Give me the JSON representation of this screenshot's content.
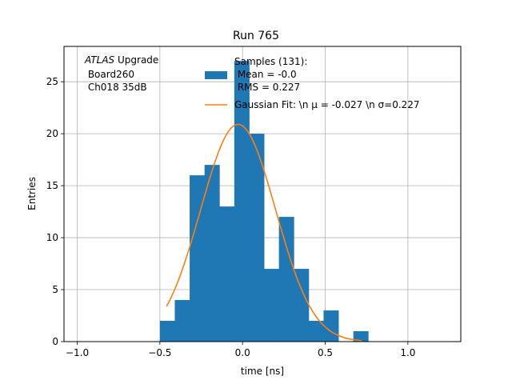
{
  "chart_data": {
    "type": "bar",
    "title": "Run 765",
    "xlabel": "time [ns]",
    "ylabel": "Entries",
    "xlim": [
      -1.08,
      1.32
    ],
    "ylim": [
      0,
      28.4
    ],
    "grid": true,
    "xticks": [
      -1.0,
      -0.5,
      0.0,
      0.5,
      1.0
    ],
    "xtick_labels": [
      "−1.0",
      "−0.5",
      "0.0",
      "0.5",
      "1.0"
    ],
    "yticks": [
      0,
      5,
      10,
      15,
      20,
      25
    ],
    "ytick_labels": [
      "0",
      "5",
      "10",
      "15",
      "20",
      "25"
    ],
    "bin_edges": [
      -0.5,
      -0.41,
      -0.32,
      -0.23,
      -0.14,
      -0.05,
      0.04,
      0.13,
      0.22,
      0.31,
      0.4,
      0.49,
      0.58,
      0.67,
      0.76
    ],
    "counts": [
      2,
      4,
      16,
      17,
      13,
      27,
      20,
      7,
      12,
      7,
      2,
      3,
      0,
      1
    ],
    "bar_color": "#1f77b4",
    "fit": {
      "type": "gaussian",
      "amplitude": 20.9,
      "mu": -0.027,
      "sigma": 0.227,
      "x_range": [
        -0.46,
        0.72
      ],
      "color": "#ff7f0e"
    },
    "legend": {
      "placement": "top-right",
      "entries": [
        {
          "kind": "patch",
          "lines": [
            "Samples (131):",
            " Mean = -0.0",
            " RMS = 0.227"
          ]
        },
        {
          "kind": "line",
          "text": "Gaussian Fit: \\n μ = -0.027 \\n σ=0.227"
        }
      ]
    },
    "annotation": {
      "title_italic": "ATLAS",
      "title_rest": " Upgrade",
      "lines": [
        " Board260",
        " Ch018 35dB"
      ]
    }
  }
}
